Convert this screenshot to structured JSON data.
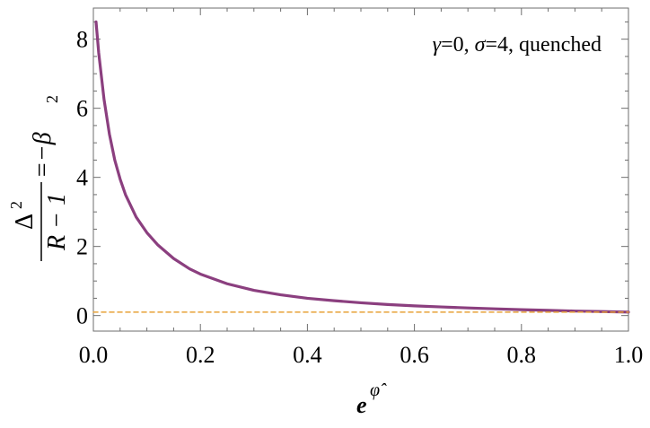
{
  "chart_data": {
    "type": "line",
    "xlabel": {
      "base": "e",
      "superscript": "φ̂"
    },
    "ylabel": {
      "numerator": "Δ",
      "numerator_superscript": "2",
      "denominator": "R − 1",
      "suffix": "=−β",
      "suffix_subscript": "2"
    },
    "annotation": {
      "gamma_symbol": "γ",
      "gamma_value": "=0, ",
      "sigma_symbol": "σ",
      "sigma_value": "=4, quenched"
    },
    "xlim": [
      0.0,
      1.0
    ],
    "ylim": [
      -0.45,
      8.9
    ],
    "xticks": [
      "0.0",
      "0.2",
      "0.4",
      "0.6",
      "0.8",
      "1.0"
    ],
    "yticks": [
      "0",
      "2",
      "4",
      "6",
      "8"
    ],
    "series": [
      {
        "color": "#8b3f7f",
        "style": "solid",
        "x": [
          0.005,
          0.01,
          0.02,
          0.03,
          0.04,
          0.05,
          0.06,
          0.08,
          0.1,
          0.12,
          0.15,
          0.18,
          0.2,
          0.25,
          0.3,
          0.35,
          0.4,
          0.45,
          0.5,
          0.55,
          0.6,
          0.65,
          0.7,
          0.75,
          0.8,
          0.85,
          0.9,
          0.95,
          1.0
        ],
        "y": [
          8.5,
          7.6,
          6.25,
          5.25,
          4.5,
          3.95,
          3.5,
          2.85,
          2.4,
          2.05,
          1.65,
          1.35,
          1.2,
          0.92,
          0.73,
          0.6,
          0.5,
          0.43,
          0.37,
          0.32,
          0.28,
          0.25,
          0.22,
          0.195,
          0.17,
          0.15,
          0.13,
          0.115,
          0.1
        ]
      },
      {
        "color": "#e8a23a",
        "style": "dashed",
        "x": [
          0.0,
          1.0
        ],
        "y": [
          0.1,
          0.1
        ]
      }
    ],
    "grid": false,
    "legend": "none"
  }
}
